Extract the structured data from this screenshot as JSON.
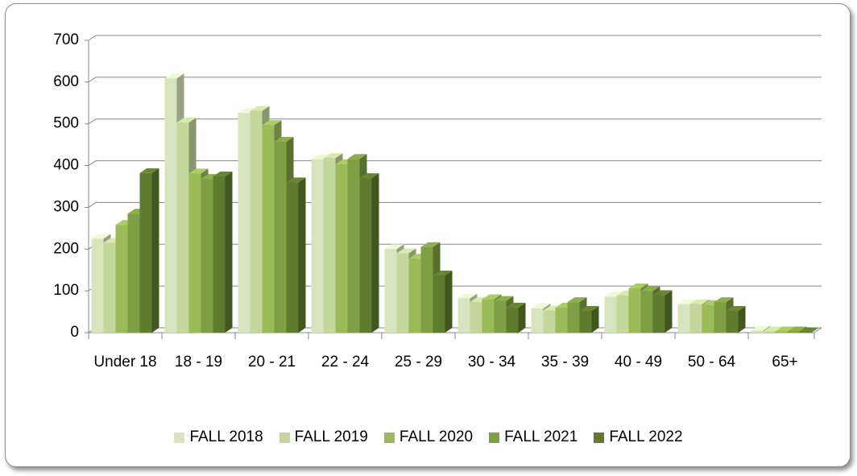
{
  "chart_data": {
    "type": "bar",
    "categories": [
      "Under 18",
      "18 - 19",
      "20 - 21",
      "22 - 24",
      "25 - 29",
      "30 - 34",
      "35 - 39",
      "40 - 49",
      "50 - 64",
      "65+"
    ],
    "series": [
      {
        "name": "FALL 2018",
        "color": "#d7e4bd",
        "values": [
          225,
          609,
          526,
          415,
          200,
          82,
          58,
          86,
          68,
          5
        ]
      },
      {
        "name": "FALL 2019",
        "color": "#c3d69b",
        "values": [
          215,
          503,
          531,
          418,
          190,
          73,
          53,
          89,
          68,
          3
        ]
      },
      {
        "name": "FALL 2020",
        "color": "#9bbb59",
        "values": [
          258,
          381,
          497,
          403,
          177,
          80,
          60,
          106,
          66,
          3
        ]
      },
      {
        "name": "FALL 2021",
        "color": "#7f9f44",
        "values": [
          285,
          368,
          457,
          416,
          205,
          76,
          73,
          100,
          73,
          3
        ]
      },
      {
        "name": "FALL 2022",
        "color": "#5e7b2e",
        "values": [
          382,
          374,
          360,
          370,
          137,
          60,
          52,
          90,
          52,
          1
        ]
      }
    ],
    "ylim": [
      0,
      700
    ],
    "yticks": [
      0,
      100,
      200,
      300,
      400,
      500,
      600,
      700
    ],
    "grid": true,
    "legend": "bottom"
  }
}
